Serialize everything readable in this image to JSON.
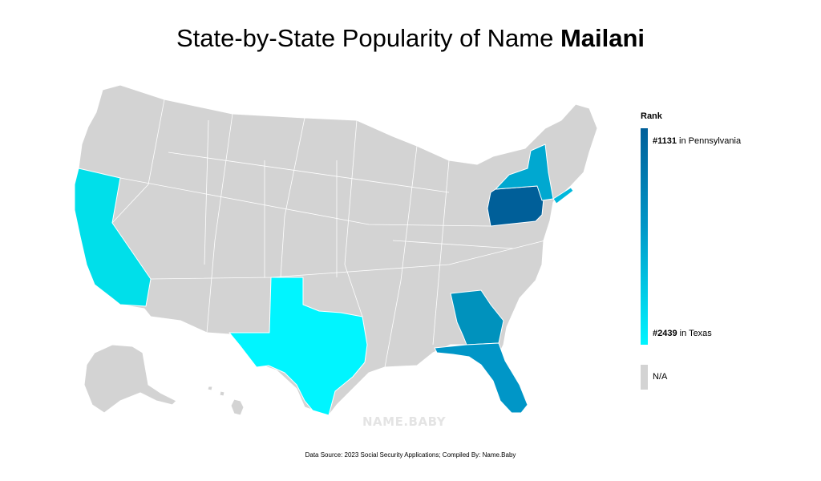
{
  "title_prefix": "State-by-State Popularity of Name ",
  "title_name": "Mailani",
  "legend": {
    "title": "Rank",
    "top_rank": "#1131",
    "top_state": " in Pennsylvania",
    "bottom_rank": "#2439",
    "bottom_state": " in Texas",
    "na_label": "N/A",
    "gradient_top_color": "#005f99",
    "gradient_bottom_color": "#00f5ff",
    "na_color": "#d3d3d3"
  },
  "source": "Data Source: 2023 Social Security Applications; Compiled By: Name.Baby",
  "watermark": "NAME.BABY",
  "states": [
    {
      "name": "Pennsylvania",
      "rank": 1131,
      "color": "#005f99"
    },
    {
      "name": "Georgia",
      "color": "#0092bd"
    },
    {
      "name": "Florida",
      "color": "#0096c7"
    },
    {
      "name": "New York",
      "color": "#00a8d0"
    },
    {
      "name": "New Jersey",
      "color": "#00b8dc"
    },
    {
      "name": "California",
      "color": "#00dfea"
    },
    {
      "name": "Texas",
      "rank": 2439,
      "color": "#00f5ff"
    }
  ]
}
